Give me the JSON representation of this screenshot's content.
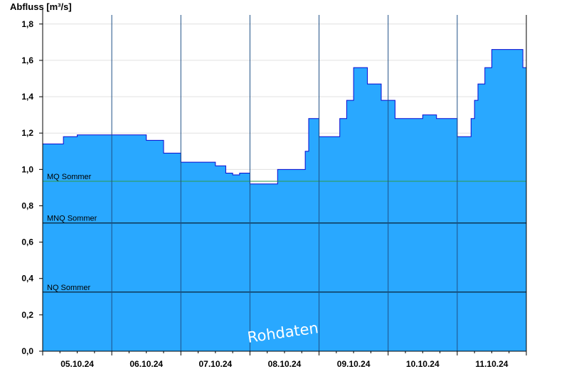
{
  "chart_data": {
    "type": "area",
    "ylabel": "Abfluss [m³/s]",
    "ylim": [
      0,
      1.85
    ],
    "yticks": [
      "0,0",
      "0,2",
      "0,4",
      "0,6",
      "0,8",
      "1,0",
      "1,2",
      "1,4",
      "1,6",
      "1,8"
    ],
    "ytick_values": [
      0,
      0.2,
      0.4,
      0.6,
      0.8,
      1.0,
      1.2,
      1.4,
      1.6,
      1.8
    ],
    "xlim": [
      0,
      7
    ],
    "day_labels": [
      "05.10.24",
      "06.10.24",
      "07.10.24",
      "08.10.24",
      "09.10.24",
      "10.10.24",
      "11.10.24"
    ],
    "series": [
      {
        "x": [
          0.0,
          0.3,
          0.5,
          1.0,
          1.5,
          1.75,
          2.0,
          2.5,
          2.65,
          2.75,
          2.85,
          3.0,
          3.05,
          3.3,
          3.4,
          3.7,
          3.8,
          3.85,
          3.9,
          4.0,
          4.15,
          4.3,
          4.4,
          4.5,
          4.6,
          4.65,
          4.7,
          4.75,
          4.8,
          4.85,
          4.9,
          5.0,
          5.05,
          5.1,
          5.2,
          5.3,
          5.5,
          5.7,
          5.9,
          6.0,
          6.1,
          6.15,
          6.2,
          6.25,
          6.3,
          6.4,
          6.5,
          6.7,
          6.85,
          6.95,
          7.0
        ],
        "values": [
          1.14,
          1.18,
          1.19,
          1.19,
          1.16,
          1.09,
          1.04,
          1.02,
          0.98,
          0.97,
          0.98,
          0.92,
          0.92,
          0.92,
          1.0,
          1.0,
          1.1,
          1.28,
          1.28,
          1.18,
          1.18,
          1.28,
          1.38,
          1.56,
          1.56,
          1.56,
          1.47,
          1.47,
          1.47,
          1.47,
          1.38,
          1.38,
          1.38,
          1.28,
          1.28,
          1.28,
          1.3,
          1.28,
          1.28,
          1.18,
          1.18,
          1.18,
          1.28,
          1.38,
          1.47,
          1.56,
          1.66,
          1.66,
          1.66,
          1.56,
          1.66
        ]
      }
    ],
    "reference_lines": [
      {
        "label": "MQ Sommer",
        "value": 0.935,
        "color": "#2e9a48"
      },
      {
        "label": "MNQ Sommer",
        "value": 0.705,
        "color": "#000000"
      },
      {
        "label": "NQ Sommer",
        "value": 0.325,
        "color": "#000000"
      }
    ],
    "watermark": "Rohdaten",
    "colors": {
      "fill": "#29a8ff",
      "line": "#0a0ad0",
      "grid": "#e0e0e0"
    }
  }
}
